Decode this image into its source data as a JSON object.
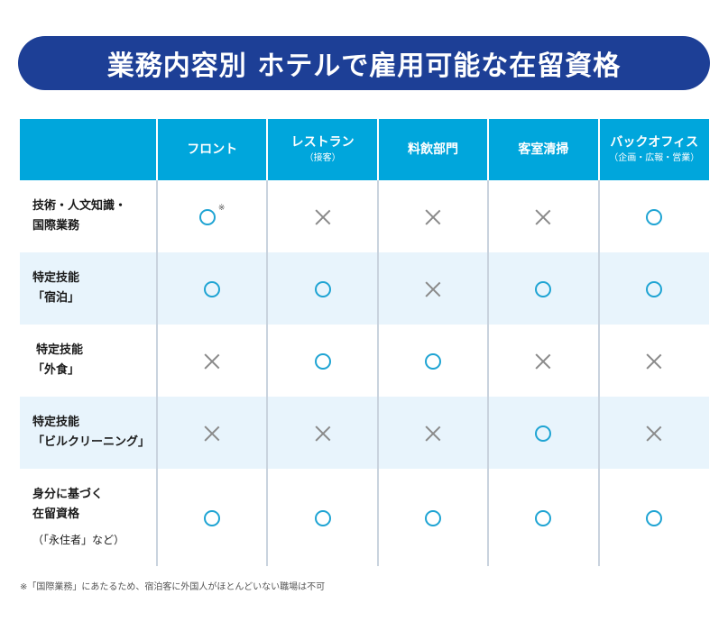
{
  "title": "業務内容別 ホテルで雇用可能な在留資格",
  "columns": [
    {
      "label": "フロント",
      "sub": ""
    },
    {
      "label": "レストラン",
      "sub": "（接客）"
    },
    {
      "label": "料飲部門",
      "sub": ""
    },
    {
      "label": "客室清掃",
      "sub": ""
    },
    {
      "label": "バックオフィス",
      "sub": "（企画・広報・営業）"
    }
  ],
  "rows": [
    {
      "label_lines": [
        "技術・人文知識・",
        "国際業務"
      ],
      "note": "",
      "marks": [
        "circle",
        "cross",
        "cross",
        "cross",
        "circle"
      ]
    },
    {
      "label_lines": [
        "特定技能",
        "「宿泊」"
      ],
      "note": "",
      "marks": [
        "circle",
        "circle",
        "cross",
        "circle",
        "circle"
      ]
    },
    {
      "label_lines": [
        "特定技能",
        "「外食」"
      ],
      "note": "",
      "marks": [
        "cross",
        "circle",
        "circle",
        "cross",
        "cross"
      ]
    },
    {
      "label_lines": [
        "特定技能",
        "「ビルクリーニング」"
      ],
      "note": "",
      "marks": [
        "cross",
        "cross",
        "cross",
        "circle",
        "cross"
      ]
    },
    {
      "label_lines": [
        "身分に基づく",
        "在留資格"
      ],
      "note": "（「永住者」など）",
      "marks": [
        "circle",
        "circle",
        "circle",
        "circle",
        "circle"
      ]
    }
  ],
  "note_marker": "※",
  "footnote": "※「国際業務」にあたるため、宿泊客に外国人がほとんどいない職場は不可",
  "colors": {
    "banner": "#1d3f96",
    "header": "#00a6dc",
    "shaded_row": "#e8f4fc",
    "circle": "#1fa4d3",
    "cross": "#8a8a8a"
  }
}
